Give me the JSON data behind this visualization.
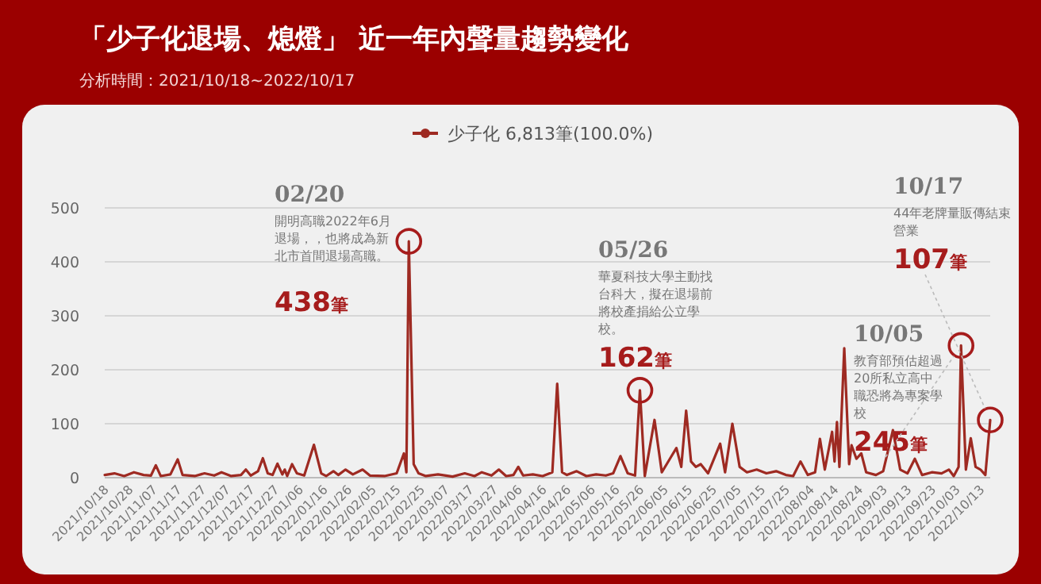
{
  "chart_data": {
    "type": "line",
    "title": "「少子化退場、熄燈」 近一年內聲量趨勢變化",
    "subtitle": "分析時間：2021/10/18~2022/10/17",
    "x": [
      "2021-10-18",
      "2021-10-22",
      "2021-10-26",
      "2021-10-30",
      "2021-11-03",
      "2021-11-06",
      "2021-11-08",
      "2021-11-10",
      "2021-11-14",
      "2021-11-17",
      "2021-11-19",
      "2021-11-24",
      "2021-11-28",
      "2021-12-02",
      "2021-12-05",
      "2021-12-09",
      "2021-12-13",
      "2021-12-15",
      "2021-12-17",
      "2021-12-20",
      "2021-12-22",
      "2021-12-24",
      "2021-12-26",
      "2021-12-28",
      "2021-12-30",
      "2021-12-31",
      "2022-01-01",
      "2022-01-03",
      "2022-01-05",
      "2022-01-08",
      "2022-01-12",
      "2022-01-15",
      "2022-01-17",
      "2022-01-20",
      "2022-01-22",
      "2022-01-25",
      "2022-01-28",
      "2022-02-01",
      "2022-02-04",
      "2022-02-10",
      "2022-02-15",
      "2022-02-18",
      "2022-02-19",
      "2022-02-20",
      "2022-02-22",
      "2022-02-24",
      "2022-02-27",
      "2022-03-04",
      "2022-03-10",
      "2022-03-15",
      "2022-03-19",
      "2022-03-22",
      "2022-03-26",
      "2022-03-29",
      "2022-04-01",
      "2022-04-04",
      "2022-04-06",
      "2022-04-08",
      "2022-04-12",
      "2022-04-16",
      "2022-04-20",
      "2022-04-22",
      "2022-04-24",
      "2022-04-26",
      "2022-04-30",
      "2022-05-04",
      "2022-05-08",
      "2022-05-12",
      "2022-05-15",
      "2022-05-18",
      "2022-05-21",
      "2022-05-24",
      "2022-05-26",
      "2022-05-28",
      "2022-06-01",
      "2022-06-04",
      "2022-06-06",
      "2022-06-08",
      "2022-06-10",
      "2022-06-12",
      "2022-06-14",
      "2022-06-16",
      "2022-06-18",
      "2022-06-20",
      "2022-06-23",
      "2022-06-28",
      "2022-06-30",
      "2022-07-03",
      "2022-07-06",
      "2022-07-09",
      "2022-07-13",
      "2022-07-17",
      "2022-07-21",
      "2022-07-25",
      "2022-07-28",
      "2022-07-31",
      "2022-08-03",
      "2022-08-06",
      "2022-08-08",
      "2022-08-10",
      "2022-08-13",
      "2022-08-14",
      "2022-08-15",
      "2022-08-16",
      "2022-08-18",
      "2022-08-20",
      "2022-08-21",
      "2022-08-23",
      "2022-08-25",
      "2022-08-27",
      "2022-08-31",
      "2022-09-03",
      "2022-09-07",
      "2022-09-10",
      "2022-09-13",
      "2022-09-16",
      "2022-09-19",
      "2022-09-23",
      "2022-09-27",
      "2022-09-30",
      "2022-10-02",
      "2022-10-04",
      "2022-10-05",
      "2022-10-07",
      "2022-10-09",
      "2022-10-11",
      "2022-10-13",
      "2022-10-15",
      "2022-10-17"
    ],
    "series": [
      {
        "name": "少子化 6,813筆(100.0%)",
        "color": "#9e2a22",
        "values": [
          5,
          8,
          3,
          10,
          5,
          4,
          23,
          3,
          6,
          34,
          5,
          3,
          8,
          4,
          10,
          3,
          5,
          15,
          4,
          12,
          36,
          8,
          5,
          26,
          6,
          15,
          3,
          25,
          8,
          4,
          61,
          8,
          3,
          12,
          5,
          15,
          6,
          15,
          4,
          3,
          8,
          45,
          10,
          438,
          25,
          8,
          3,
          6,
          2,
          8,
          3,
          10,
          4,
          15,
          3,
          5,
          20,
          4,
          6,
          3,
          10,
          174,
          10,
          5,
          12,
          3,
          6,
          4,
          8,
          40,
          8,
          4,
          162,
          3,
          107,
          10,
          25,
          40,
          55,
          20,
          124,
          30,
          20,
          25,
          8,
          63,
          10,
          100,
          20,
          10,
          15,
          8,
          12,
          5,
          3,
          30,
          5,
          10,
          72,
          15,
          85,
          30,
          103,
          20,
          240,
          25,
          60,
          35,
          45,
          10,
          5,
          12,
          88,
          15,
          8,
          35,
          5,
          10,
          8,
          15,
          3,
          20,
          245,
          15,
          73,
          20,
          15,
          5,
          107
        ]
      }
    ],
    "xlim": [
      "2021-10-18",
      "2022-10-17"
    ],
    "xticks": [
      {
        "value": "2021-10-18",
        "label": "2021/10/18"
      },
      {
        "value": "2021-10-28",
        "label": "2021/10/28"
      },
      {
        "value": "2021-11-07",
        "label": "2021/11/07"
      },
      {
        "value": "2021-11-17",
        "label": "2021/11/17"
      },
      {
        "value": "2021-11-27",
        "label": "2021/11/27"
      },
      {
        "value": "2021-12-07",
        "label": "2021/12/07"
      },
      {
        "value": "2021-12-17",
        "label": "2021/12/17"
      },
      {
        "value": "2021-12-27",
        "label": "2021/12/27"
      },
      {
        "value": "2022-01-06",
        "label": "2022/01/06"
      },
      {
        "value": "2022-01-16",
        "label": "2022/01/16"
      },
      {
        "value": "2022-01-26",
        "label": "2022/01/26"
      },
      {
        "value": "2022-02-05",
        "label": "2022/02/05"
      },
      {
        "value": "2022-02-15",
        "label": "2022/02/15"
      },
      {
        "value": "2022-02-25",
        "label": "2022/02/25"
      },
      {
        "value": "2022-03-07",
        "label": "2022/03/07"
      },
      {
        "value": "2022-03-17",
        "label": "2022/03/17"
      },
      {
        "value": "2022-03-27",
        "label": "2022/03/27"
      },
      {
        "value": "2022-04-06",
        "label": "2022/04/06"
      },
      {
        "value": "2022-04-16",
        "label": "2022/04/16"
      },
      {
        "value": "2022-04-26",
        "label": "2022/04/26"
      },
      {
        "value": "2022-05-06",
        "label": "2022/05/06"
      },
      {
        "value": "2022-05-16",
        "label": "2022/05/16"
      },
      {
        "value": "2022-05-26",
        "label": "2022/05/26"
      },
      {
        "value": "2022-06-05",
        "label": "2022/06/05"
      },
      {
        "value": "2022-06-15",
        "label": "2022/06/15"
      },
      {
        "value": "2022-06-25",
        "label": "2022/06/25"
      },
      {
        "value": "2022-07-05",
        "label": "2022/07/05"
      },
      {
        "value": "2022-07-15",
        "label": "2022/07/15"
      },
      {
        "value": "2022-07-25",
        "label": "2022/07/25"
      },
      {
        "value": "2022-08-04",
        "label": "2022/08/04"
      },
      {
        "value": "2022-08-14",
        "label": "2022/08/14"
      },
      {
        "value": "2022-08-24",
        "label": "2022/08/24"
      },
      {
        "value": "2022-09-03",
        "label": "2022/09/03"
      },
      {
        "value": "2022-09-13",
        "label": "2022/09/13"
      },
      {
        "value": "2022-09-23",
        "label": "2022/09/23"
      },
      {
        "value": "2022-10-03",
        "label": "2022/10/03"
      },
      {
        "value": "2022-10-13",
        "label": "2022/10/13"
      }
    ],
    "ylim": [
      0,
      500
    ],
    "yticks": [
      0,
      100,
      200,
      300,
      400,
      500
    ],
    "grid": "y",
    "legend": "top",
    "annotations": [
      "02/20",
      "開明高職2022年6月退場，，也將成為新北市首間退場高職。",
      {
        "text": "438筆",
        "x": "2022-02-20",
        "y": 438
      },
      "05/26",
      "華夏科技大學主動找台科大，擬在退場前將校產捐給公立學校。",
      {
        "text": "162筆",
        "x": "2022-05-26",
        "y": 162
      },
      "10/05",
      "教育部預估超過20所私立高中職恐將為專案學校",
      {
        "text": "245筆",
        "x": "2022-10-05",
        "y": 245
      },
      "10/17",
      "44年老牌量販傳結束營業",
      {
        "text": "107筆",
        "x": "2022-10-17",
        "y": 107
      }
    ]
  }
}
